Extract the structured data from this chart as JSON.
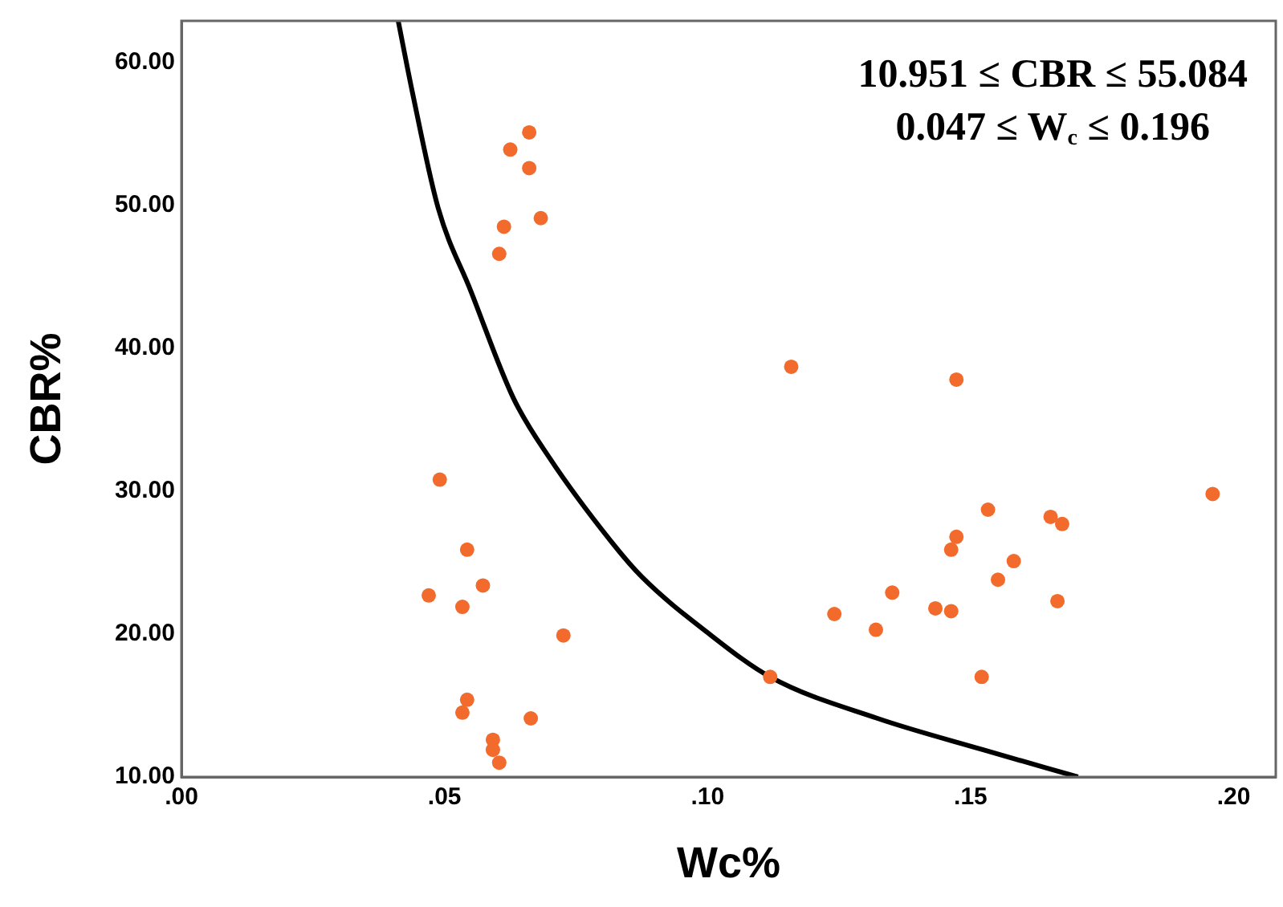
{
  "chart_data": {
    "type": "scatter",
    "xlabel": "Wc%",
    "ylabel": "CBR%",
    "xlim": [
      0,
      0.208
    ],
    "ylim": [
      10,
      62.9
    ],
    "xticks": [
      {
        "value": 0,
        "label": ".00"
      },
      {
        "value": 0.05,
        "label": ".05"
      },
      {
        "value": 0.1,
        "label": ".10"
      },
      {
        "value": 0.15,
        "label": ".15"
      },
      {
        "value": 0.2,
        "label": ".20"
      }
    ],
    "yticks": [
      {
        "value": 10,
        "label": "10.00"
      },
      {
        "value": 20,
        "label": "20.00"
      },
      {
        "value": 30,
        "label": "30.00"
      },
      {
        "value": 40,
        "label": "40.00"
      },
      {
        "value": 50,
        "label": "50.00"
      },
      {
        "value": 60,
        "label": "60.00"
      }
    ],
    "grid": false,
    "legend": false,
    "marker": "circle",
    "annotations": [
      "10.951 ≤ CBR ≤ 55.084",
      "0.047 ≤ W$_{c}$ ≤ 0.196"
    ],
    "series": [
      {
        "color": "#f26b2c",
        "x": [
          0.0661,
          0.0625,
          0.0661,
          0.0683,
          0.0613,
          0.0604,
          0.0491,
          0.0543,
          0.0573,
          0.047,
          0.0534,
          0.0726,
          0.0543,
          0.0534,
          0.0664,
          0.0592,
          0.0592,
          0.0604,
          0.1159,
          0.1473,
          0.196,
          0.1533,
          0.1652,
          0.1674,
          0.1473,
          0.1463,
          0.1582,
          0.1552,
          0.1351,
          0.1665,
          0.1433,
          0.1463,
          0.1241,
          0.132,
          0.1119,
          0.1521
        ],
        "values": [
          55.1,
          53.9,
          52.6,
          49.1,
          48.5,
          46.6,
          30.8,
          25.9,
          23.4,
          22.7,
          21.9,
          19.9,
          15.4,
          14.5,
          14.1,
          12.6,
          11.9,
          11.0,
          38.7,
          37.8,
          29.8,
          28.7,
          28.2,
          27.7,
          26.8,
          25.9,
          25.1,
          23.8,
          22.9,
          22.3,
          21.8,
          21.6,
          21.4,
          20.3,
          17.0,
          17.0
        ]
      },
      {
        "type": "line",
        "color": "#000000",
        "marker": "none",
        "line_style": "solid",
        "x": [
          0.0412,
          0.0439,
          0.0488,
          0.055,
          0.0631,
          0.07,
          0.0814,
          0.0875,
          0.1,
          0.1119,
          0.1323,
          0.1524,
          0.1704
        ],
        "values": [
          62.9,
          57.9,
          49.8,
          44.0,
          36.5,
          32.3,
          26.6,
          24.0,
          20.1,
          17.0,
          14.1,
          11.9,
          10.0
        ]
      }
    ]
  }
}
